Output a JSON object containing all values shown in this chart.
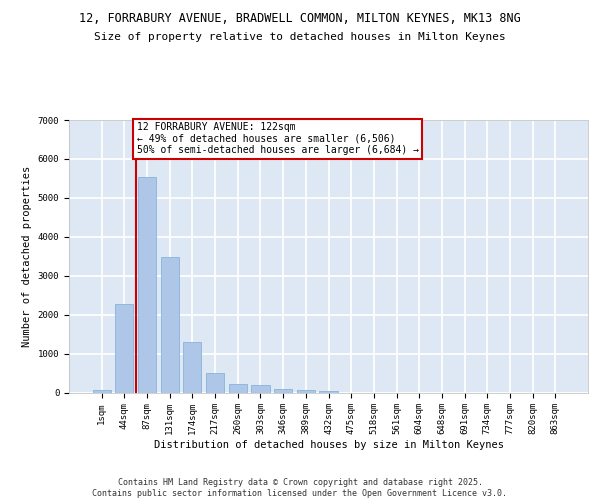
{
  "title_line1": "12, FORRABURY AVENUE, BRADWELL COMMON, MILTON KEYNES, MK13 8NG",
  "title_line2": "Size of property relative to detached houses in Milton Keynes",
  "xlabel": "Distribution of detached houses by size in Milton Keynes",
  "ylabel": "Number of detached properties",
  "categories": [
    "1sqm",
    "44sqm",
    "87sqm",
    "131sqm",
    "174sqm",
    "217sqm",
    "260sqm",
    "303sqm",
    "346sqm",
    "389sqm",
    "432sqm",
    "475sqm",
    "518sqm",
    "561sqm",
    "604sqm",
    "648sqm",
    "691sqm",
    "734sqm",
    "777sqm",
    "820sqm",
    "863sqm"
  ],
  "values": [
    70,
    2280,
    5530,
    3470,
    1310,
    490,
    215,
    200,
    100,
    70,
    50,
    0,
    0,
    0,
    0,
    0,
    0,
    0,
    0,
    0,
    0
  ],
  "bar_color": "#aec6e8",
  "bar_edge_color": "#7aadd4",
  "bg_color": "#dde8f4",
  "grid_color": "#ffffff",
  "vline_color": "#cc0000",
  "annotation_lines": [
    "12 FORRABURY AVENUE: 122sqm",
    "← 49% of detached houses are smaller (6,506)",
    "50% of semi-detached houses are larger (6,684) →"
  ],
  "ylim": [
    0,
    7000
  ],
  "yticks": [
    0,
    1000,
    2000,
    3000,
    4000,
    5000,
    6000,
    7000
  ],
  "footnote": "Contains HM Land Registry data © Crown copyright and database right 2025.\nContains public sector information licensed under the Open Government Licence v3.0.",
  "title_fontsize": 8.5,
  "subtitle_fontsize": 8.0,
  "axis_label_fontsize": 7.5,
  "tick_fontsize": 6.5,
  "annotation_fontsize": 7.0,
  "footnote_fontsize": 6.0
}
